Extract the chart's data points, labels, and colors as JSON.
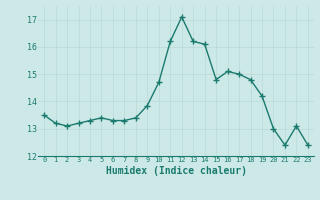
{
  "x": [
    0,
    1,
    2,
    3,
    4,
    5,
    6,
    7,
    8,
    9,
    10,
    11,
    12,
    13,
    14,
    15,
    16,
    17,
    18,
    19,
    20,
    21,
    22,
    23
  ],
  "y": [
    13.5,
    13.2,
    13.1,
    13.2,
    13.3,
    13.4,
    13.3,
    13.3,
    13.4,
    13.85,
    14.7,
    16.2,
    17.1,
    16.2,
    16.1,
    14.8,
    15.1,
    15.0,
    14.8,
    14.2,
    13.0,
    12.4,
    13.1,
    12.4
  ],
  "xlabel": "Humidex (Indice chaleur)",
  "ylim": [
    12,
    17.5
  ],
  "xlim": [
    -0.5,
    23.5
  ],
  "yticks": [
    12,
    13,
    14,
    15,
    16,
    17
  ],
  "xticks": [
    0,
    1,
    2,
    3,
    4,
    5,
    6,
    7,
    8,
    9,
    10,
    11,
    12,
    13,
    14,
    15,
    16,
    17,
    18,
    19,
    20,
    21,
    22,
    23
  ],
  "line_color": "#1a7a6e",
  "marker": "+",
  "marker_size": 4,
  "marker_edge_width": 1.0,
  "line_width": 1.0,
  "bg_color": "#cce9e7",
  "grid_color": "#b8d8d6",
  "tick_label_color": "#1a7a6e",
  "xlabel_color": "#1a7a6e",
  "xlabel_fontsize": 7,
  "xlabel_fontweight": "bold",
  "ytick_fontsize": 6,
  "xtick_fontsize": 5
}
